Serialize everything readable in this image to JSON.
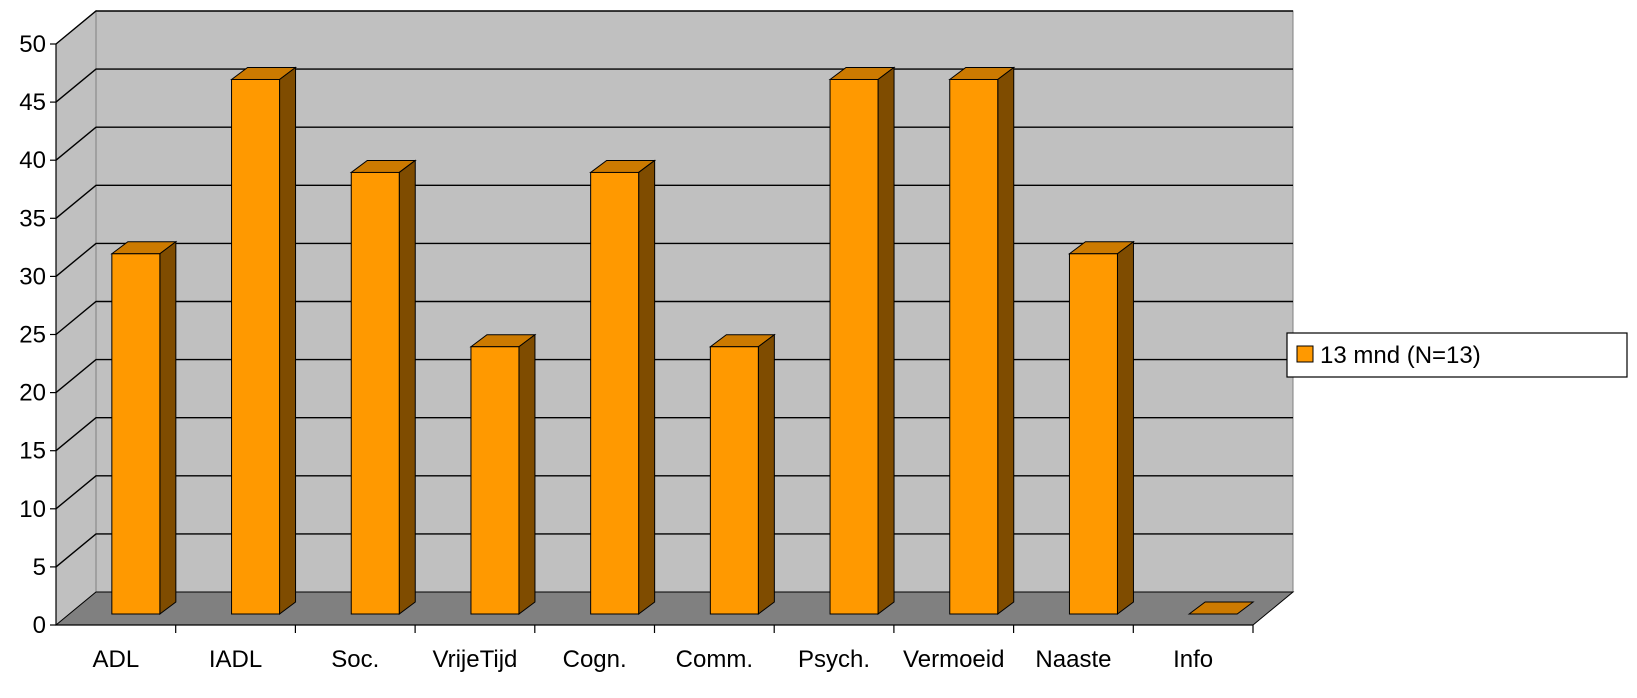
{
  "chart_data": {
    "type": "bar",
    "title": "",
    "xlabel": "",
    "ylabel": "",
    "categories": [
      "ADL",
      "IADL",
      "Soc.",
      "VrijeTijd",
      "Cogn.",
      "Comm.",
      "Psych.",
      "Vermoeid",
      "Naaste",
      "Info"
    ],
    "series": [
      {
        "name": "13 mnd (N=13)",
        "values": [
          31,
          46,
          38,
          23,
          38,
          23,
          46,
          46,
          31,
          0
        ]
      }
    ],
    "ylim": [
      0,
      50
    ],
    "yticks": [
      0,
      5,
      10,
      15,
      20,
      25,
      30,
      35,
      40,
      45,
      50
    ],
    "grid": true,
    "legend_position": "right",
    "style": "3d",
    "colors": {
      "bar_front": "#ff9900",
      "bar_side": "#7f4c00",
      "bar_top": "#cc7a00",
      "back_wall": "#c0c0c0",
      "floor": "#808080",
      "grid": "#000000"
    }
  }
}
